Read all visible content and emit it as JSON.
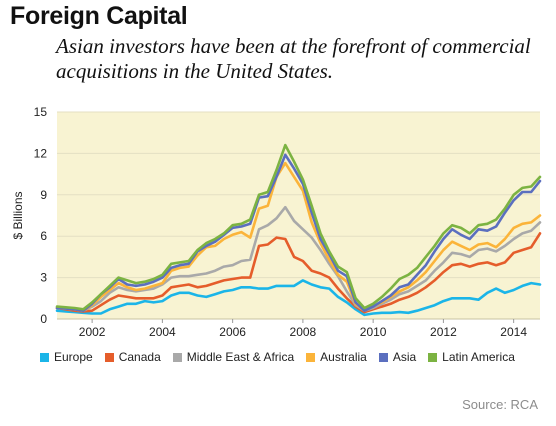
{
  "title": "Foreign Capital",
  "subtitle": "Asian investors have been at the forefront of commercial acquisitions in the United States.",
  "source": "Source: RCA",
  "chart_data": {
    "type": "line",
    "ylabel": "$ Billions",
    "ylim": [
      0,
      15
    ],
    "yticks": [
      0,
      3,
      6,
      9,
      12,
      15
    ],
    "xlim": [
      2001.0,
      2014.75
    ],
    "xticks": [
      2002,
      2004,
      2006,
      2008,
      2010,
      2012,
      2014
    ],
    "xtick_labels": [
      "2002",
      "2004",
      "2006",
      "2008",
      "2010",
      "2012",
      "2014"
    ],
    "grid": "horizontal",
    "background": "#f8f3d2",
    "legend_position": "bottom",
    "x": [
      2001.0,
      2001.25,
      2001.5,
      2001.75,
      2002.0,
      2002.25,
      2002.5,
      2002.75,
      2003.0,
      2003.25,
      2003.5,
      2003.75,
      2004.0,
      2004.25,
      2004.5,
      2004.75,
      2005.0,
      2005.25,
      2005.5,
      2005.75,
      2006.0,
      2006.25,
      2006.5,
      2006.75,
      2007.0,
      2007.25,
      2007.5,
      2007.75,
      2008.0,
      2008.25,
      2008.5,
      2008.75,
      2009.0,
      2009.25,
      2009.5,
      2009.75,
      2010.0,
      2010.25,
      2010.5,
      2010.75,
      2011.0,
      2011.25,
      2011.5,
      2011.75,
      2012.0,
      2012.25,
      2012.5,
      2012.75,
      2013.0,
      2013.25,
      2013.5,
      2013.75,
      2014.0,
      2014.25,
      2014.5,
      2014.75
    ],
    "series": [
      {
        "name": "Europe",
        "color": "#1bb5e8",
        "values": [
          0.6,
          0.55,
          0.5,
          0.45,
          0.4,
          0.4,
          0.7,
          0.9,
          1.1,
          1.1,
          1.3,
          1.2,
          1.3,
          1.7,
          1.9,
          1.9,
          1.7,
          1.6,
          1.8,
          2.0,
          2.1,
          2.3,
          2.3,
          2.2,
          2.2,
          2.4,
          2.4,
          2.4,
          2.8,
          2.5,
          2.3,
          2.2,
          1.6,
          1.2,
          0.7,
          0.3,
          0.4,
          0.45,
          0.45,
          0.5,
          0.45,
          0.6,
          0.8,
          1.0,
          1.3,
          1.5,
          1.5,
          1.5,
          1.4,
          1.9,
          2.2,
          1.9,
          2.1,
          2.4,
          2.6,
          2.5
        ]
      },
      {
        "name": "Canada",
        "color": "#e55d2b",
        "values": [
          0.8,
          0.7,
          0.6,
          0.55,
          0.6,
          1.0,
          1.4,
          1.7,
          1.6,
          1.5,
          1.5,
          1.5,
          1.7,
          2.3,
          2.4,
          2.5,
          2.3,
          2.4,
          2.6,
          2.8,
          2.9,
          3.0,
          3.0,
          5.3,
          5.4,
          5.9,
          5.8,
          4.5,
          4.2,
          3.5,
          3.3,
          3.0,
          2.2,
          1.5,
          0.9,
          0.5,
          0.7,
          0.9,
          1.1,
          1.4,
          1.6,
          1.9,
          2.3,
          2.8,
          3.4,
          3.9,
          4.0,
          3.8,
          4.0,
          4.1,
          3.9,
          4.1,
          4.8,
          5.0,
          5.2,
          6.2
        ]
      },
      {
        "name": "Middle East & Africa",
        "color": "#a9a9a9",
        "values": [
          0.8,
          0.75,
          0.7,
          0.6,
          0.9,
          1.3,
          1.9,
          2.3,
          2.1,
          2.0,
          2.1,
          2.2,
          2.5,
          3.0,
          3.1,
          3.1,
          3.2,
          3.3,
          3.5,
          3.8,
          3.9,
          4.2,
          4.3,
          6.5,
          6.8,
          7.3,
          8.1,
          7.1,
          6.5,
          5.9,
          5.0,
          4.0,
          3.1,
          2.0,
          1.0,
          0.6,
          0.8,
          1.1,
          1.4,
          1.8,
          2.0,
          2.4,
          2.8,
          3.5,
          4.1,
          4.8,
          4.7,
          4.5,
          5.0,
          5.1,
          4.9,
          5.3,
          5.8,
          6.2,
          6.4,
          7.0
        ]
      },
      {
        "name": "Australia",
        "color": "#fbb43a",
        "values": [
          0.8,
          0.75,
          0.7,
          0.6,
          1.0,
          1.6,
          2.1,
          2.6,
          2.3,
          2.1,
          2.2,
          2.4,
          2.6,
          3.5,
          3.7,
          3.8,
          4.6,
          5.2,
          5.3,
          5.8,
          6.1,
          6.3,
          5.9,
          8.0,
          8.2,
          10.3,
          11.3,
          10.3,
          9.3,
          7.0,
          5.5,
          4.3,
          3.2,
          2.7,
          1.1,
          0.6,
          0.9,
          1.2,
          1.6,
          2.0,
          2.3,
          2.8,
          3.4,
          4.2,
          5.0,
          5.6,
          5.3,
          5.0,
          5.4,
          5.5,
          5.2,
          5.8,
          6.6,
          6.9,
          7.0,
          7.5
        ]
      },
      {
        "name": "Asia",
        "color": "#5b6fbf",
        "values": [
          0.8,
          0.75,
          0.7,
          0.6,
          1.1,
          1.8,
          2.3,
          2.9,
          2.5,
          2.4,
          2.5,
          2.7,
          3.0,
          3.7,
          3.9,
          4.0,
          4.9,
          5.3,
          5.6,
          6.1,
          6.6,
          6.7,
          6.9,
          8.8,
          8.9,
          10.3,
          11.9,
          10.9,
          9.8,
          7.7,
          5.8,
          4.7,
          3.5,
          3.1,
          1.2,
          0.6,
          0.9,
          1.3,
          1.7,
          2.3,
          2.5,
          3.2,
          3.9,
          4.9,
          5.8,
          6.5,
          6.1,
          5.8,
          6.5,
          6.4,
          6.7,
          7.7,
          8.6,
          9.2,
          9.2,
          10.0
        ]
      },
      {
        "name": "Latin America",
        "color": "#7cb342",
        "values": [
          0.9,
          0.85,
          0.8,
          0.7,
          1.2,
          1.8,
          2.4,
          3.0,
          2.8,
          2.6,
          2.7,
          2.9,
          3.2,
          4.0,
          4.1,
          4.2,
          5.0,
          5.5,
          5.8,
          6.2,
          6.8,
          6.9,
          7.2,
          9.0,
          9.2,
          10.8,
          12.6,
          11.4,
          10.1,
          8.2,
          6.2,
          4.9,
          3.8,
          3.4,
          1.5,
          0.8,
          1.1,
          1.6,
          2.2,
          2.9,
          3.2,
          3.7,
          4.5,
          5.3,
          6.2,
          6.8,
          6.6,
          6.2,
          6.8,
          6.9,
          7.2,
          8.0,
          9.0,
          9.5,
          9.6,
          10.3
        ]
      }
    ]
  }
}
